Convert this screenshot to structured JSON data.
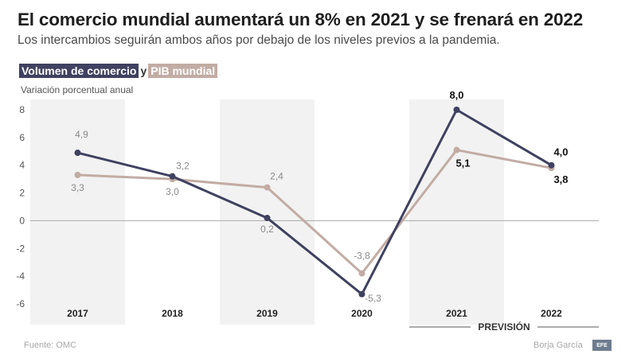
{
  "header": {
    "title": "El comercio mundial aumentará un 8% en 2021 y se frenará en 2022",
    "subtitle": "Los intercambios seguirán ambos años por debajo de los niveles previos a la pandemia."
  },
  "legend": {
    "series_a": "Volumen de comercio",
    "connector": "y",
    "series_b": "PIB mundial"
  },
  "footer": {
    "source": "Fuente: OMC",
    "author": "Borja García",
    "logo_text": "EFE"
  },
  "colors": {
    "trade": "#3f4160",
    "gdp": "#c2aca4",
    "band": "#f2f2f2",
    "zero_line": "#a9a9a9"
  },
  "chart_data": {
    "type": "line",
    "title": "",
    "ylabel": "Variación porcentual anual",
    "categories": [
      "2017",
      "2018",
      "2019",
      "2020",
      "2021",
      "2022"
    ],
    "yticks": [
      "8",
      "6",
      "4",
      "2",
      "0",
      "-2",
      "-4",
      "-6"
    ],
    "ylim": [
      -6,
      8
    ],
    "grid": false,
    "forecast_label": "PREVISIÓN",
    "forecast_categories": [
      "2021",
      "2022"
    ],
    "shaded_categories": [
      "2017",
      "2019",
      "2021"
    ],
    "series": [
      {
        "name": "Volumen de comercio",
        "values": [
          4.9,
          3.2,
          0.2,
          -5.3,
          8.0,
          4.0
        ],
        "labels": [
          "4,9",
          "",
          "0,2",
          "-5,3",
          "8,0",
          "4,0"
        ]
      },
      {
        "name": "PIB mundial",
        "values": [
          3.3,
          3.0,
          2.4,
          -3.8,
          5.1,
          3.8
        ],
        "labels": [
          "3,3",
          "3,0",
          "2,4",
          "-3,8",
          "5,1",
          "3,8"
        ]
      }
    ],
    "extra_labels": [
      {
        "text": "3,2",
        "category": "2018",
        "value": 3.2
      }
    ]
  }
}
